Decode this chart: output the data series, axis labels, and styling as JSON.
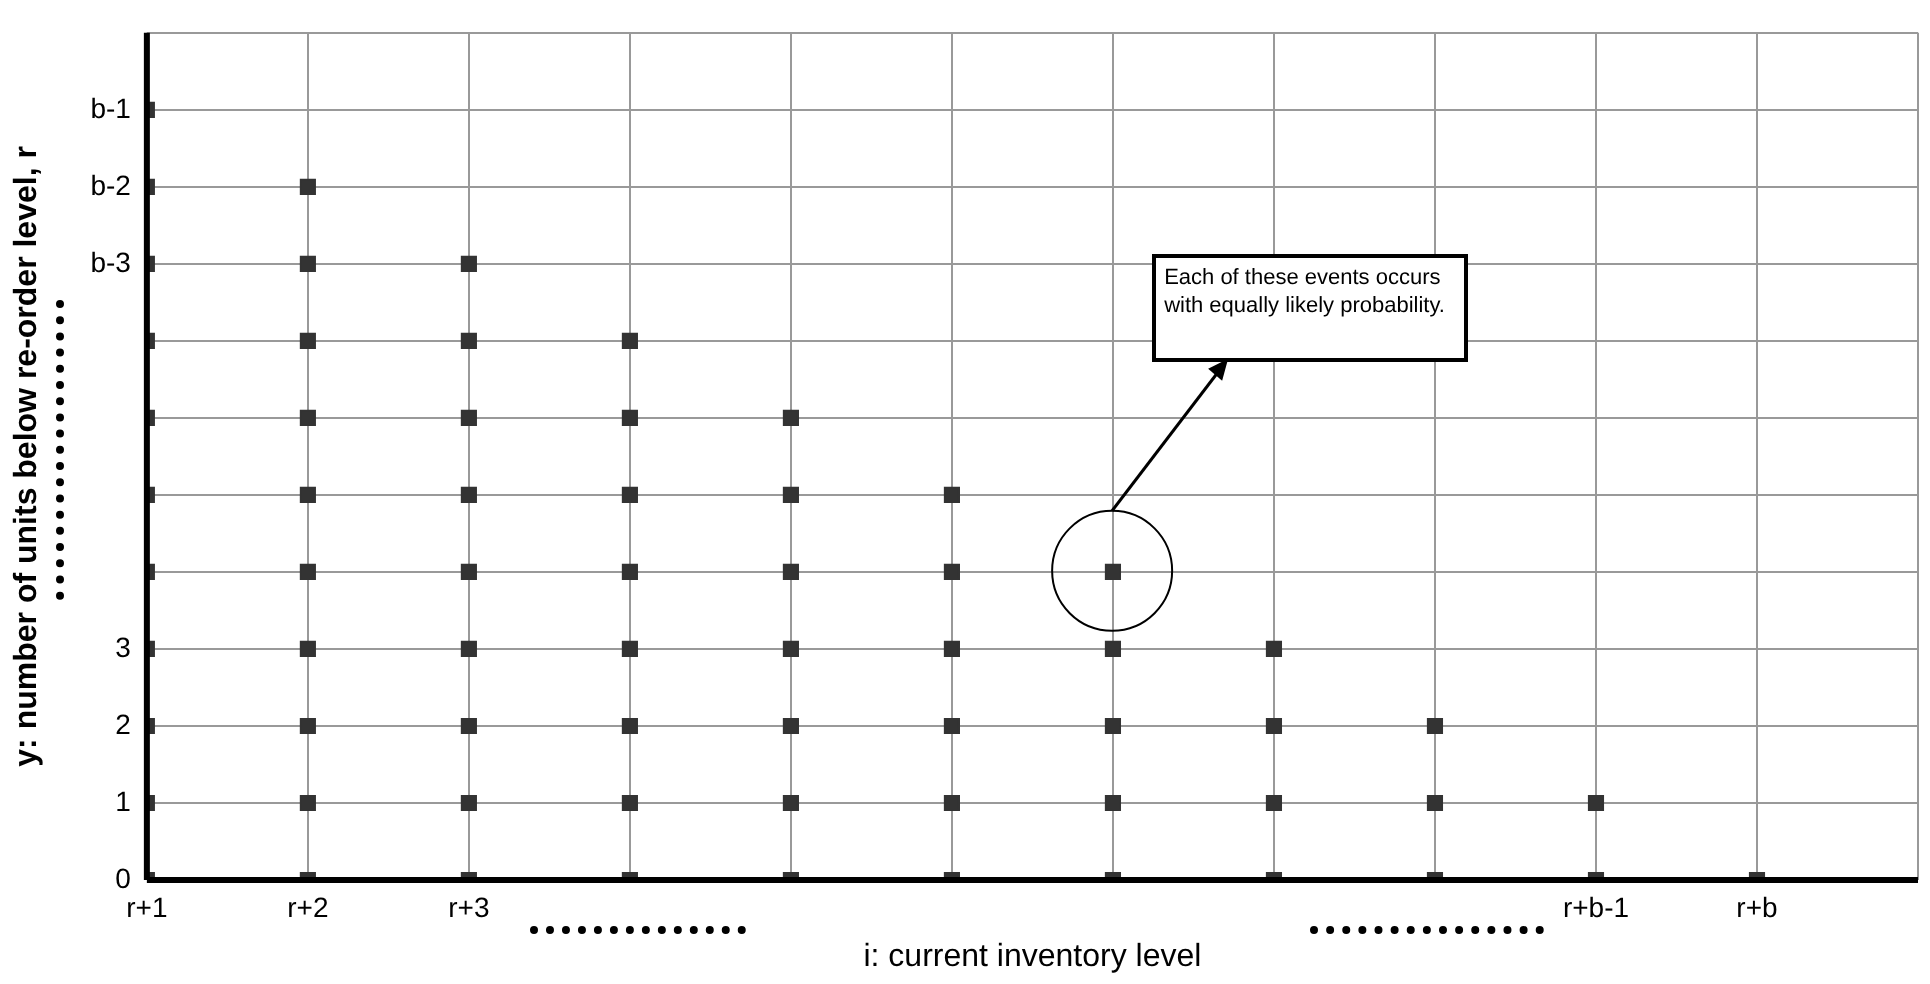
{
  "chart_data": {
    "type": "scatter",
    "xlabel": "i: current inventory level",
    "ylabel": "y: number of units below re-order level, r",
    "categories": [
      "r+1",
      "r+2",
      "r+3",
      null,
      null,
      null,
      null,
      null,
      null,
      "r+b-1",
      "r+b"
    ],
    "series": [
      {
        "color": "#333333",
        "values": [
          0,
          0,
          0,
          0,
          0,
          0,
          0,
          0,
          0,
          0,
          0
        ]
      },
      {
        "color": "#333333",
        "values": [
          1,
          1,
          1,
          1,
          1,
          1,
          1,
          1,
          1,
          1,
          null
        ]
      },
      {
        "color": "#333333",
        "values": [
          2,
          2,
          2,
          2,
          2,
          2,
          2,
          2,
          2,
          null,
          null
        ]
      },
      {
        "color": "#333333",
        "values": [
          3,
          3,
          3,
          3,
          3,
          3,
          3,
          3,
          null,
          null,
          null
        ]
      },
      {
        "color": "#333333",
        "values": [
          4,
          4,
          4,
          4,
          4,
          4,
          4,
          null,
          null,
          null,
          null
        ]
      },
      {
        "color": "#333333",
        "values": [
          5,
          5,
          5,
          5,
          5,
          5,
          null,
          null,
          null,
          null,
          null
        ]
      },
      {
        "color": "#333333",
        "values": [
          6,
          6,
          6,
          6,
          6,
          null,
          null,
          null,
          null,
          null,
          null
        ]
      },
      {
        "color": "#333333",
        "values": [
          7,
          7,
          7,
          7,
          null,
          null,
          null,
          null,
          null,
          null,
          null
        ]
      },
      {
        "color": "#333333",
        "values": [
          8,
          8,
          8,
          null,
          null,
          null,
          null,
          null,
          null,
          null,
          null
        ]
      },
      {
        "color": "#333333",
        "values": [
          9,
          9,
          null,
          null,
          null,
          null,
          null,
          null,
          null,
          null,
          null
        ]
      },
      {
        "color": "#333333",
        "values": [
          10,
          null,
          null,
          null,
          null,
          null,
          null,
          null,
          null,
          null,
          null
        ]
      }
    ],
    "ylim": [
      0,
      11
    ],
    "yticks": [
      0,
      1,
      2,
      3,
      {
        "value": 4,
        "label": null
      },
      {
        "value": 5,
        "label": null
      },
      {
        "value": 6,
        "label": null
      },
      {
        "value": 7,
        "label": null
      },
      {
        "value": 8,
        "label": "b-3"
      },
      {
        "value": 9,
        "label": "b-2"
      },
      {
        "value": 10,
        "label": "b-1"
      },
      {
        "value": 11,
        "label": null
      }
    ],
    "grid": true,
    "marker": "square",
    "legend": false,
    "annotations": [
      "Each of these events occurs with equally likely probability."
    ]
  }
}
